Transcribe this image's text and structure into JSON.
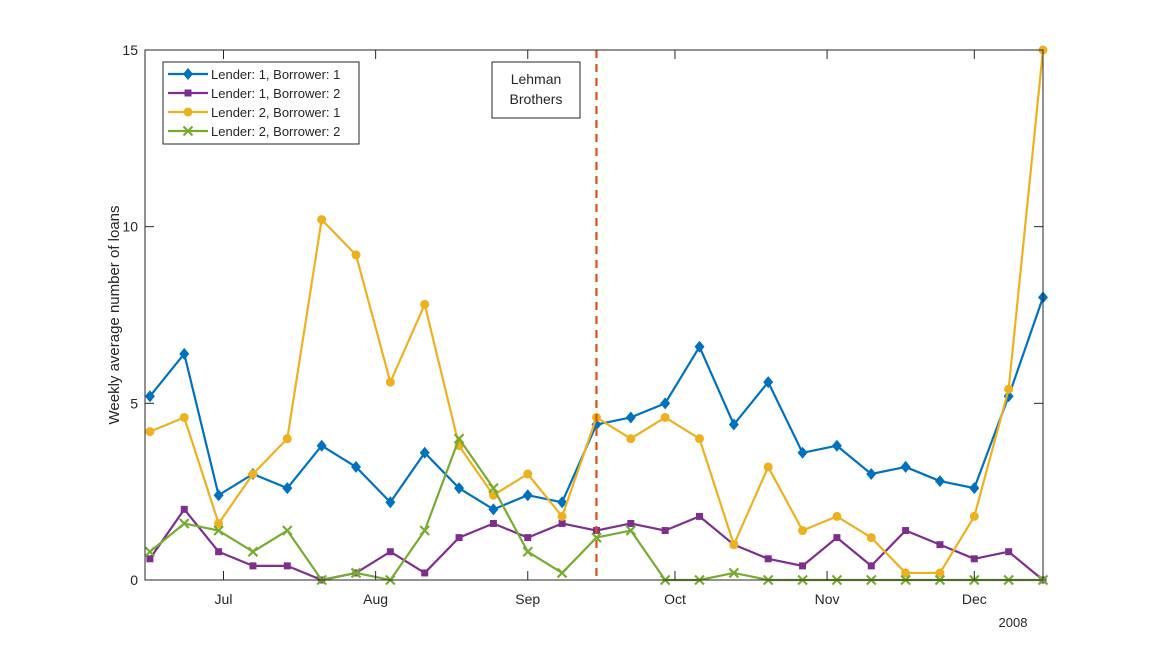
{
  "chart_data": {
    "type": "line",
    "title": "",
    "xlabel": "",
    "ylabel": "Weekly average number of loans",
    "ylim": [
      0,
      15
    ],
    "yticks": [
      0,
      5,
      10,
      15
    ],
    "xlim": [
      "2008-06-15",
      "2008-12-15"
    ],
    "xticks": [
      {
        "date": "2008-07-01",
        "label": "Jul"
      },
      {
        "date": "2008-08-01",
        "label": "Aug"
      },
      {
        "date": "2008-09-01",
        "label": "Sep"
      },
      {
        "date": "2008-10-01",
        "label": "Oct"
      },
      {
        "date": "2008-11-01",
        "label": "Nov"
      },
      {
        "date": "2008-12-01",
        "label": "Dec"
      }
    ],
    "year_label": "2008",
    "grid": false,
    "legend_position": "top-left",
    "x": [
      "2008-06-16",
      "2008-06-23",
      "2008-06-30",
      "2008-07-07",
      "2008-07-14",
      "2008-07-21",
      "2008-07-28",
      "2008-08-04",
      "2008-08-11",
      "2008-08-18",
      "2008-08-25",
      "2008-09-01",
      "2008-09-08",
      "2008-09-15",
      "2008-09-22",
      "2008-09-29",
      "2008-10-06",
      "2008-10-13",
      "2008-10-20",
      "2008-10-27",
      "2008-11-03",
      "2008-11-10",
      "2008-11-17",
      "2008-11-24",
      "2008-12-01",
      "2008-12-08",
      "2008-12-15"
    ],
    "series": [
      {
        "name": "Lender: 1, Borrower: 1",
        "color": "#0072BD",
        "marker": "diamond",
        "values": [
          5.2,
          6.4,
          2.4,
          3.0,
          2.6,
          3.8,
          3.2,
          2.2,
          3.6,
          2.6,
          2.0,
          2.4,
          2.2,
          4.4,
          4.6,
          5.0,
          6.6,
          4.4,
          5.6,
          3.6,
          3.8,
          3.0,
          3.2,
          2.8,
          2.6,
          5.2,
          8.0
        ]
      },
      {
        "name": "Lender: 1, Borrower: 2",
        "color": "#7E2F8E",
        "marker": "square",
        "values": [
          0.6,
          2.0,
          0.8,
          0.4,
          0.4,
          0,
          0.2,
          0.8,
          0.2,
          1.2,
          1.6,
          1.2,
          1.6,
          1.4,
          1.6,
          1.4,
          1.8,
          1.0,
          0.6,
          0.4,
          1.2,
          0.4,
          1.4,
          1.0,
          0.6,
          0.8,
          0
        ]
      },
      {
        "name": "Lender: 2, Borrower: 1",
        "color": "#EDB120",
        "marker": "circle",
        "values": [
          4.2,
          4.6,
          1.6,
          3.0,
          4.0,
          10.2,
          9.2,
          5.6,
          7.8,
          3.8,
          2.4,
          3.0,
          1.8,
          4.6,
          4.0,
          4.6,
          4.0,
          1.0,
          3.2,
          1.4,
          1.8,
          1.2,
          0.2,
          0.2,
          1.8,
          5.4,
          15.0
        ]
      },
      {
        "name": "Lender: 2, Borrower: 2",
        "color": "#77AC30",
        "marker": "x",
        "values": [
          0.8,
          1.6,
          1.4,
          0.8,
          1.4,
          0,
          0.2,
          0,
          1.4,
          4.0,
          2.6,
          0.8,
          0.2,
          1.2,
          1.4,
          0,
          0,
          0.2,
          0,
          0,
          0,
          0,
          0,
          0,
          0,
          0,
          0
        ]
      }
    ],
    "annotations": [
      {
        "type": "vline",
        "date": "2008-09-15",
        "color": "#D95319",
        "style": "dashed"
      },
      {
        "type": "textbox",
        "lines": [
          "Lehman",
          "Brothers"
        ]
      }
    ]
  }
}
